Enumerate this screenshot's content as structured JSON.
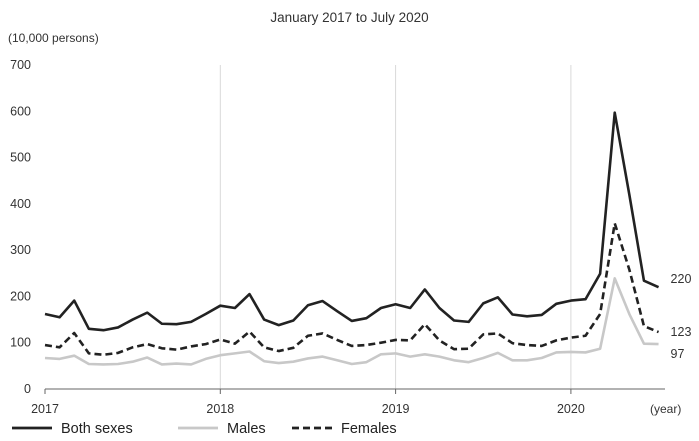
{
  "chart_data": {
    "type": "line",
    "title": "January 2017 to July 2020",
    "ylabel": "(10,000 persons)",
    "xlabel": "(year)",
    "ylim": [
      0,
      700
    ],
    "yticks": [
      "0",
      "100",
      "200",
      "300",
      "400",
      "500",
      "600",
      "700"
    ],
    "xticks": [
      "2017",
      "2018",
      "2019",
      "2020"
    ],
    "grid": "vertical",
    "legend_position": "bottom",
    "x": [
      "2017-01",
      "2017-02",
      "2017-03",
      "2017-04",
      "2017-05",
      "2017-06",
      "2017-07",
      "2017-08",
      "2017-09",
      "2017-10",
      "2017-11",
      "2017-12",
      "2018-01",
      "2018-02",
      "2018-03",
      "2018-04",
      "2018-05",
      "2018-06",
      "2018-07",
      "2018-08",
      "2018-09",
      "2018-10",
      "2018-11",
      "2018-12",
      "2019-01",
      "2019-02",
      "2019-03",
      "2019-04",
      "2019-05",
      "2019-06",
      "2019-07",
      "2019-08",
      "2019-09",
      "2019-10",
      "2019-11",
      "2019-12",
      "2020-01",
      "2020-02",
      "2020-03",
      "2020-04",
      "2020-05",
      "2020-06",
      "2020-07"
    ],
    "series": [
      {
        "name": "Both sexes",
        "color": "#222222",
        "dash": "solid",
        "end_label": "220",
        "values": [
          162,
          155,
          191,
          130,
          127,
          133,
          150,
          165,
          141,
          140,
          145,
          162,
          180,
          175,
          205,
          150,
          138,
          148,
          181,
          190,
          168,
          147,
          153,
          175,
          183,
          175,
          215,
          175,
          148,
          145,
          185,
          198,
          161,
          157,
          160,
          184,
          191,
          194,
          249,
          597,
          420,
          234,
          220
        ]
      },
      {
        "name": "Males",
        "color": "#c8c8c8",
        "dash": "solid",
        "end_label": "97",
        "values": [
          67,
          65,
          72,
          54,
          53,
          54,
          59,
          68,
          53,
          55,
          53,
          65,
          73,
          77,
          81,
          60,
          56,
          59,
          66,
          70,
          62,
          54,
          58,
          75,
          77,
          70,
          75,
          70,
          62,
          58,
          67,
          78,
          62,
          62,
          67,
          79,
          80,
          79,
          87,
          239,
          162,
          98,
          97
        ]
      },
      {
        "name": "Females",
        "color": "#222222",
        "dash": "dashed",
        "end_label": "123",
        "values": [
          95,
          90,
          121,
          77,
          74,
          78,
          90,
          97,
          88,
          85,
          92,
          97,
          107,
          98,
          124,
          90,
          82,
          89,
          115,
          120,
          106,
          93,
          95,
          100,
          106,
          105,
          140,
          105,
          86,
          87,
          118,
          120,
          99,
          95,
          93,
          105,
          111,
          115,
          162,
          358,
          258,
          136,
          123
        ]
      }
    ]
  }
}
